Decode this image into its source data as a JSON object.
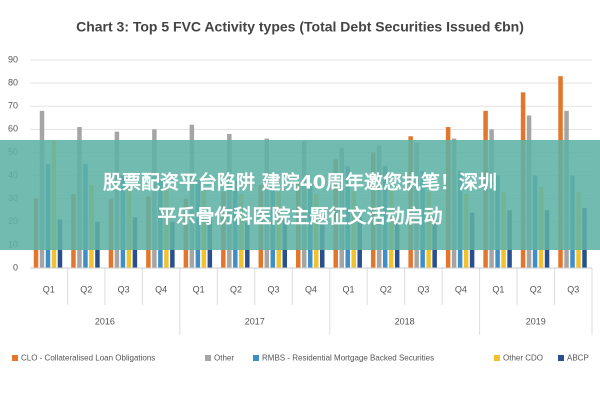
{
  "chart_data": {
    "type": "bar",
    "title": "Chart 3: Top 5 FVC Activity types (Total Debt Securities Issued €bn)",
    "categories": [
      "Q1",
      "Q2",
      "Q3",
      "Q4",
      "Q1",
      "Q2",
      "Q3",
      "Q4",
      "Q1",
      "Q2",
      "Q3",
      "Q4",
      "Q1",
      "Q2",
      "Q3"
    ],
    "category_groups": [
      "2016",
      "2016",
      "2016",
      "2016",
      "2017",
      "2017",
      "2017",
      "2017",
      "2018",
      "2018",
      "2018",
      "2018",
      "2019",
      "2019",
      "2019"
    ],
    "series": [
      {
        "name": "CLO - Collateralised Loan Obligations",
        "color": "#e4762c",
        "values": [
          30,
          32,
          30,
          31,
          30,
          33,
          36,
          37,
          47,
          50,
          57,
          61,
          68,
          76,
          83
        ]
      },
      {
        "name": "Other",
        "color": "#a5a5a5",
        "values": [
          68,
          61,
          59,
          60,
          62,
          58,
          56,
          55,
          52,
          53,
          54,
          56,
          60,
          66,
          68
        ]
      },
      {
        "name": "RMBS - Residential Mortgage Backed Securities",
        "color": "#3d8fc6",
        "values": [
          45,
          45,
          40,
          38,
          38,
          38,
          37,
          36,
          44,
          44,
          42,
          42,
          40,
          40,
          40
        ]
      },
      {
        "name": "Other CDO",
        "color": "#f2c12e",
        "values": [
          55,
          36,
          35,
          35,
          34,
          32,
          33,
          32,
          33,
          34,
          33,
          32,
          33,
          35,
          33
        ]
      },
      {
        "name": "ABCP",
        "color": "#2a4f8f",
        "values": [
          21,
          20,
          22,
          20,
          21,
          20,
          21,
          20,
          22,
          21,
          22,
          24,
          25,
          25,
          26
        ]
      }
    ],
    "ylim": [
      0,
      90
    ],
    "yticks": [
      0,
      10,
      20,
      30,
      40,
      50,
      60,
      70,
      80,
      90
    ],
    "grid": true
  },
  "overlay": {
    "lines": [
      "股票配资平台陷阱 建院40周年邀您执笔！深圳",
      "平乐骨伤科医院主题征文活动启动"
    ]
  }
}
